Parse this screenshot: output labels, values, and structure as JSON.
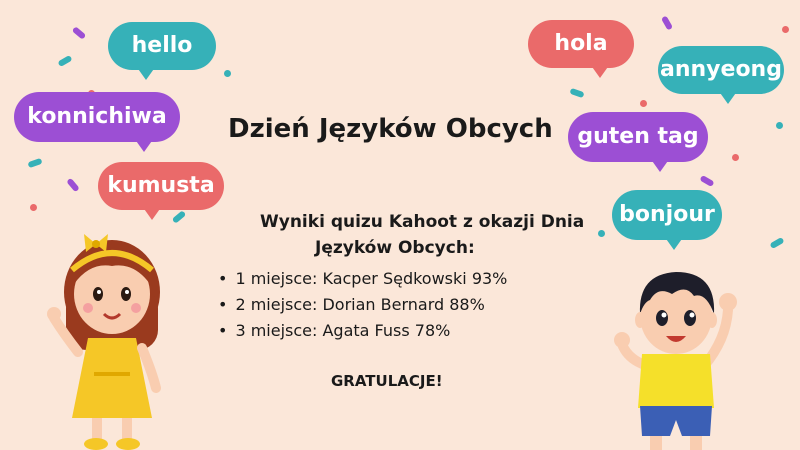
{
  "title": "Dzień Języków Obcych",
  "subtitle_line1": "Wyniki quizu Kahoot z okazji Dnia",
  "subtitle_line2": "Języków Obcych:",
  "results": [
    "1 miejsce: Kacper Sędkowski 93%",
    "2 miejsce: Dorian Bernard 88%",
    "3 miejsce: Agata Fuss 78%"
  ],
  "congratulations": "GRATULACJE!",
  "bubbles": {
    "hello": "hello",
    "konnichiwa": "konnichiwa",
    "kumusta": "kumusta",
    "hola": "hola",
    "annyeong": "annyeong",
    "guten_tag": "guten tag",
    "bonjour": "bonjour"
  },
  "colors": {
    "background": "#fbe7d9",
    "teal": "#36b1b8",
    "purple": "#9c4fd4",
    "coral": "#ea6a6a"
  }
}
